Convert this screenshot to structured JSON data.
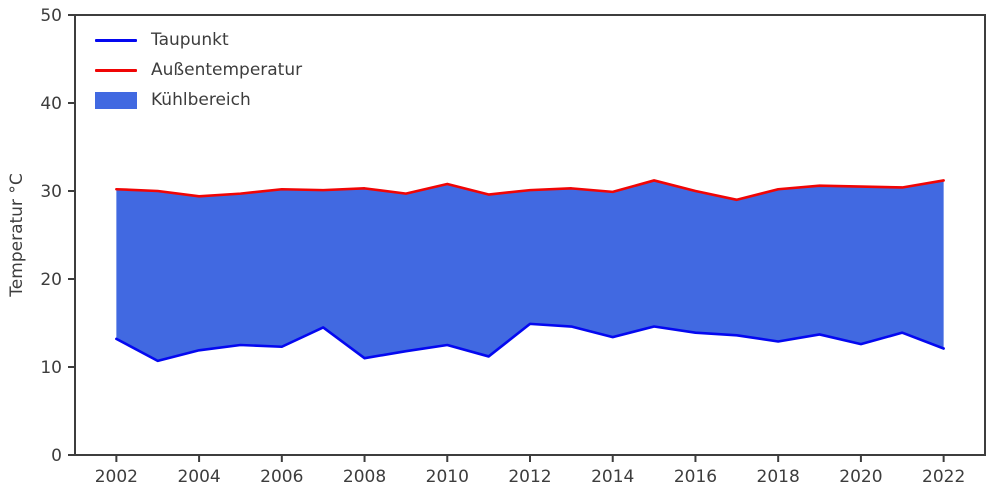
{
  "chart_data": {
    "type": "area",
    "title": "",
    "xlabel": "",
    "ylabel": "Temperatur °C",
    "x": [
      2002,
      2003,
      2004,
      2005,
      2006,
      2007,
      2008,
      2009,
      2010,
      2011,
      2012,
      2013,
      2014,
      2015,
      2016,
      2017,
      2018,
      2019,
      2020,
      2021,
      2022
    ],
    "series": [
      {
        "name": "Taupunkt",
        "color": "#0408f0",
        "values": [
          13.2,
          10.7,
          11.9,
          12.5,
          12.3,
          14.5,
          11.0,
          11.8,
          12.5,
          11.2,
          14.9,
          14.6,
          13.4,
          14.6,
          13.9,
          13.6,
          12.9,
          13.7,
          12.6,
          13.9,
          12.1
        ]
      },
      {
        "name": "Außentemperatur",
        "color": "#f00505",
        "values": [
          30.2,
          30.0,
          29.4,
          29.7,
          30.2,
          30.1,
          30.3,
          29.7,
          30.8,
          29.6,
          30.1,
          30.3,
          29.9,
          31.2,
          30.0,
          29.0,
          30.2,
          30.6,
          30.5,
          30.4,
          31.2
        ]
      }
    ],
    "fill_between": {
      "name": "Kühlbereich",
      "color": "#4169e1",
      "lower_series": "Taupunkt",
      "upper_series": "Außentemperatur"
    },
    "xlim": [
      2001,
      2023
    ],
    "ylim": [
      0,
      50
    ],
    "xticks": [
      2002,
      2004,
      2006,
      2008,
      2010,
      2012,
      2014,
      2016,
      2018,
      2020,
      2022
    ],
    "yticks": [
      0,
      10,
      20,
      30,
      40,
      50
    ],
    "grid": false,
    "legend_position": "upper left",
    "axis_color": "#3d3d3d"
  }
}
